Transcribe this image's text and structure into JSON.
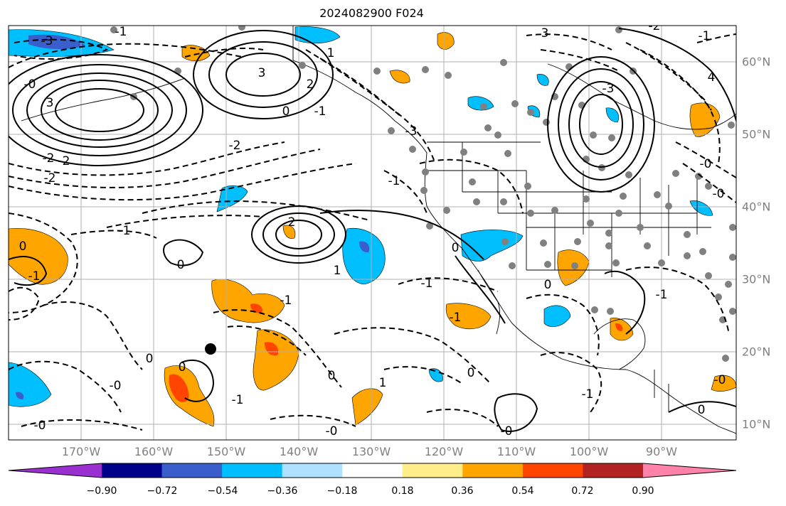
{
  "title": "2024082900 F024",
  "lon_labels": [
    "170°W",
    "160°W",
    "150°W",
    "140°W",
    "130°W",
    "120°W",
    "110°W",
    "100°W",
    "90°W"
  ],
  "lat_labels": [
    "60°N",
    "50°N",
    "40°N",
    "30°N",
    "20°N",
    "10°N"
  ],
  "colorbar": {
    "colors": [
      "#9b30d0",
      "#00008b",
      "#3a5fcd",
      "#00bfff",
      "#b0e2ff",
      "#ffffff",
      "#ffec8b",
      "#ffa500",
      "#ff4500",
      "#b22222",
      "#ff82ab"
    ],
    "tick_labels": [
      "−0.90",
      "−0.72",
      "−0.54",
      "−0.36",
      "−0.18",
      "0.18",
      "0.36",
      "0.54",
      "0.72",
      "0.90"
    ]
  },
  "contour_labels": [
    "-3",
    "-0",
    "3",
    "-1",
    "-2",
    "-2",
    "-2",
    "-2",
    "3",
    "2",
    "0",
    "-1",
    "1",
    "-3",
    "3",
    "-2",
    "-3",
    "-1",
    "4",
    "2",
    "-1",
    "0",
    "-1",
    "0",
    "-1",
    "0",
    "-0",
    "0",
    "-0",
    "-1",
    "0",
    "1",
    "-1",
    "-1",
    "0",
    "-0",
    "-0",
    "-0",
    "0",
    "1",
    "-1",
    "0",
    "0",
    "-1",
    "-0",
    "-0",
    "-1"
  ],
  "colors": {
    "grid": "#b0b0b0",
    "contour": "#000000",
    "coast": "#000000",
    "station": "#808080"
  }
}
